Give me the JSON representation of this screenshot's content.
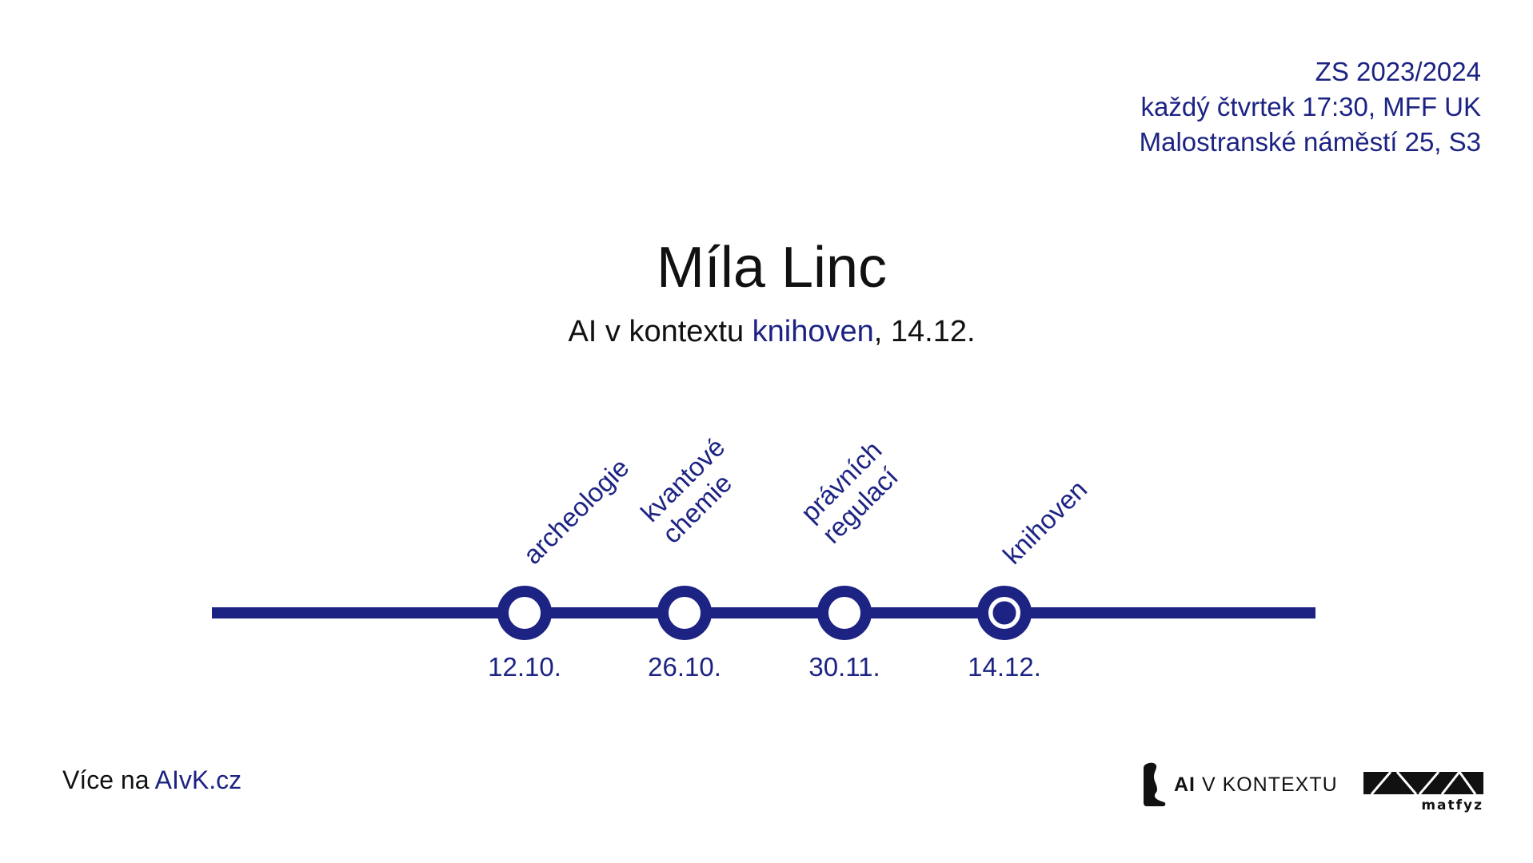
{
  "info": {
    "line1": "ZS 2023/2024",
    "line2": "každý čtvrtek 17:30, MFF UK",
    "line3": "Malostranské náměstí 25, S3"
  },
  "speaker": "Míla Linc",
  "subtitle": {
    "prefix": "AI v kontextu ",
    "highlight": "knihoven",
    "suffix": ", 14.12."
  },
  "timeline": {
    "color": "#1c2383",
    "stops": [
      {
        "date": "12.10.",
        "topic_lines": [
          "archeologie"
        ],
        "current": false
      },
      {
        "date": "26.10.",
        "topic_lines": [
          "kvantové",
          "chemie"
        ],
        "current": false
      },
      {
        "date": "30.11.",
        "topic_lines": [
          "právních",
          "regulací"
        ],
        "current": false
      },
      {
        "date": "14.12.",
        "topic_lines": [
          "knihoven"
        ],
        "current": true
      }
    ]
  },
  "footer": {
    "more_prefix": "Více na ",
    "more_link": "AIvK.cz",
    "logo_ai_bold": "AI",
    "logo_ai_rest": " V KONTEXTU",
    "logo_matfyz": "matfyz"
  },
  "icons": {
    "logo_ai": "head-profile-icon",
    "logo_matfyz": "matfyz-logo-icon"
  }
}
